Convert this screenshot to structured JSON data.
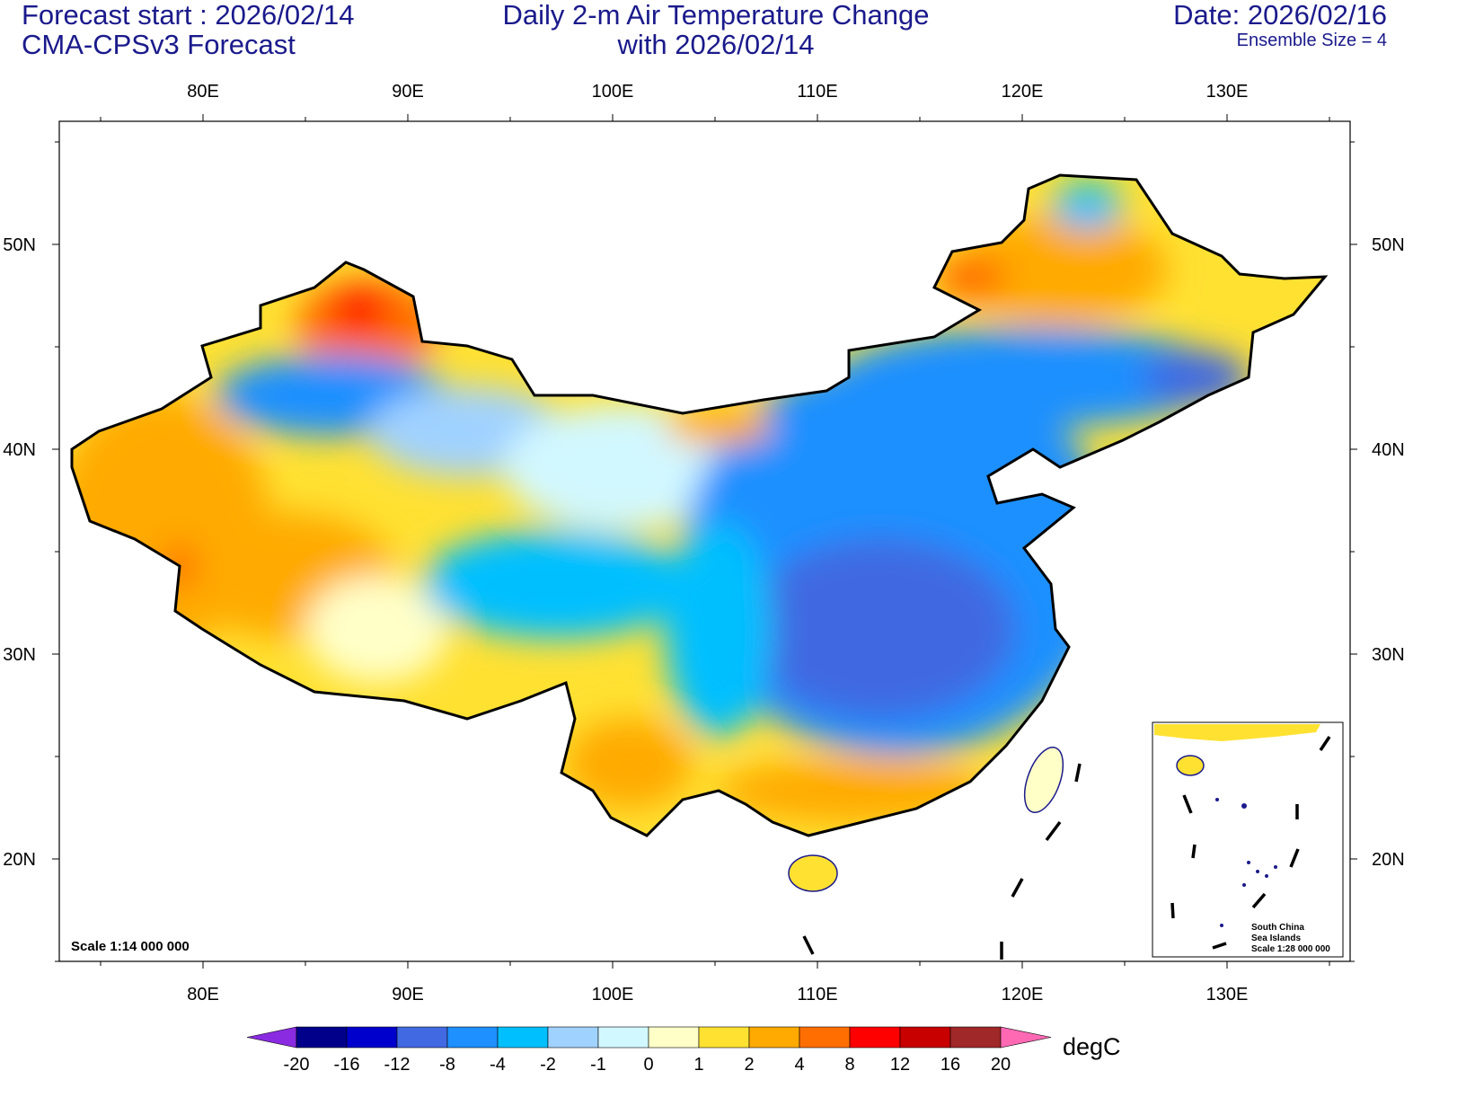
{
  "header": {
    "left_line1": "Forecast start : 2026/02/14",
    "left_line2": "CMA-CPSv3 Forecast",
    "title_line1": "Daily 2-m Air Temperature Change",
    "title_line2": "with 2026/02/14",
    "date": "Date: 2026/02/16",
    "ensemble": "Ensemble Size = 4"
  },
  "map": {
    "lon_ticks": [
      "80E",
      "90E",
      "100E",
      "110E",
      "120E",
      "130E"
    ],
    "lat_ticks": [
      "50N",
      "40N",
      "30N",
      "20N"
    ],
    "scale_label": "Scale 1:14 000 000",
    "inset": {
      "line1": "South China",
      "line2": "Sea Islands",
      "line3": "Scale 1:28 000 000"
    }
  },
  "colorbar": {
    "unit": "degC",
    "labels": [
      "-20",
      "-16",
      "-12",
      "-8",
      "-4",
      "-2",
      "-1",
      "0",
      "1",
      "2",
      "4",
      "8",
      "12",
      "16",
      "20"
    ],
    "colors": [
      "#00008b",
      "#0000cd",
      "#4169e1",
      "#1e90ff",
      "#00bfff",
      "#a0d2ff",
      "#d2f8ff",
      "#ffffc8",
      "#ffe132",
      "#ffaa00",
      "#ff6e00",
      "#ff0000",
      "#c80000",
      "#a02828"
    ],
    "low_color": "#8a2be2",
    "high_color": "#ff69b4"
  }
}
